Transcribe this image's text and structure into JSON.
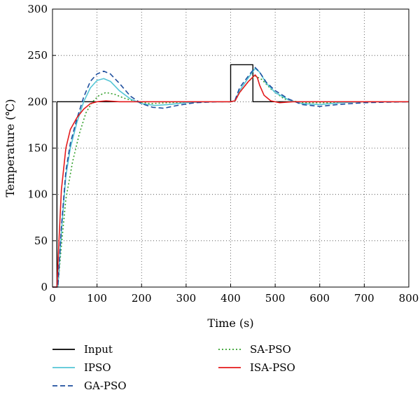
{
  "chart_data": {
    "type": "line",
    "xlabel": "Time (s)",
    "ylabel": "Temperature (℃)",
    "xlim": [
      0,
      800
    ],
    "ylim": [
      0,
      300
    ],
    "xticks": [
      0,
      100,
      200,
      300,
      400,
      500,
      600,
      700,
      800
    ],
    "yticks": [
      0,
      50,
      100,
      150,
      200,
      250,
      300
    ],
    "grid": "dotted",
    "legend_position": "bottom",
    "series": [
      {
        "name": "Input",
        "color": "#000000",
        "dash": "solid",
        "x": [
          0,
          10,
          10,
          400,
          400,
          450,
          450,
          800
        ],
        "y": [
          0,
          0,
          200,
          200,
          240,
          240,
          200,
          200
        ]
      },
      {
        "name": "IPSO",
        "color": "#55c6d6",
        "dash": "solid",
        "x": [
          0,
          12,
          20,
          30,
          40,
          55,
          70,
          85,
          100,
          115,
          130,
          150,
          175,
          200,
          230,
          260,
          300,
          350,
          400,
          410,
          420,
          440,
          455,
          465,
          480,
          500,
          530,
          560,
          600,
          650,
          700,
          800
        ],
        "y": [
          0,
          0,
          60,
          120,
          150,
          178,
          200,
          215,
          223,
          225,
          222,
          212,
          203,
          198,
          196,
          197,
          199,
          200,
          200,
          201,
          212,
          226,
          236,
          232,
          220,
          210,
          202,
          198,
          197,
          199,
          200,
          200
        ]
      },
      {
        "name": "GA-PSO",
        "color": "#1f4f9e",
        "dash": "dashed",
        "x": [
          0,
          12,
          20,
          30,
          40,
          55,
          70,
          85,
          100,
          115,
          130,
          150,
          175,
          200,
          225,
          250,
          280,
          320,
          370,
          400,
          410,
          420,
          440,
          455,
          465,
          480,
          500,
          530,
          560,
          600,
          640,
          700,
          800
        ],
        "y": [
          0,
          0,
          65,
          125,
          155,
          182,
          205,
          222,
          230,
          233,
          230,
          220,
          206,
          198,
          194,
          193,
          196,
          199,
          200,
          200,
          202,
          215,
          228,
          237,
          232,
          221,
          212,
          203,
          197,
          195,
          197,
          199,
          200
        ]
      },
      {
        "name": "SA-PSO",
        "color": "#33a02c",
        "dash": "dotted",
        "x": [
          0,
          12,
          20,
          30,
          45,
          60,
          75,
          90,
          105,
          120,
          140,
          160,
          190,
          220,
          260,
          320,
          400,
          410,
          420,
          440,
          455,
          470,
          490,
          520,
          560,
          620,
          700,
          800
        ],
        "y": [
          0,
          0,
          45,
          95,
          135,
          165,
          188,
          200,
          207,
          210,
          208,
          204,
          200,
          198,
          199,
          200,
          200,
          201,
          210,
          222,
          228,
          224,
          214,
          203,
          199,
          199,
          200,
          200
        ]
      },
      {
        "name": "ISA-PSO",
        "color": "#e41a1c",
        "dash": "solid",
        "x": [
          0,
          10,
          15,
          20,
          30,
          40,
          55,
          70,
          85,
          100,
          120,
          150,
          200,
          300,
          400,
          410,
          420,
          440,
          455,
          460,
          465,
          475,
          490,
          510,
          540,
          600,
          700,
          800
        ],
        "y": [
          0,
          0,
          55,
          105,
          150,
          170,
          183,
          192,
          198,
          200,
          201,
          200,
          200,
          200,
          200,
          201,
          210,
          222,
          229,
          226,
          218,
          207,
          201,
          199,
          200,
          200,
          200,
          200
        ]
      }
    ]
  }
}
